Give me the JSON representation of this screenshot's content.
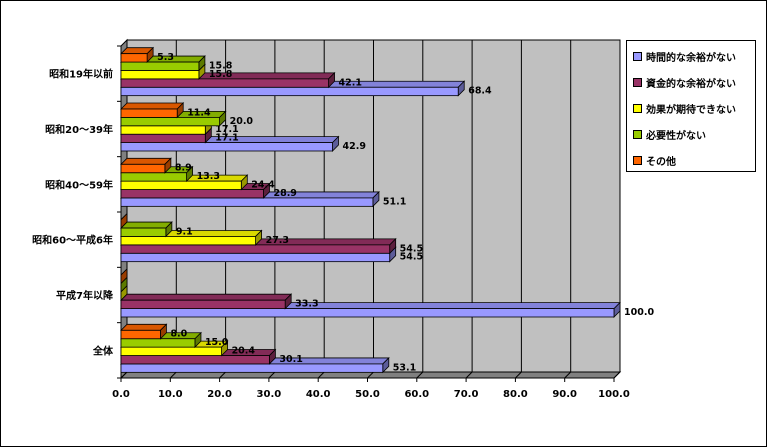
{
  "chart_data": {
    "type": "bar",
    "orientation": "horizontal",
    "categories": [
      "昭和19年以前",
      "昭和20～39年",
      "昭和40～59年",
      "昭和60～平成6年",
      "平成7年以降",
      "全体"
    ],
    "series": [
      {
        "name": "時間的な余裕がない",
        "color": "#9999ff",
        "values": [
          68.4,
          42.9,
          51.1,
          54.5,
          100.0,
          53.1
        ]
      },
      {
        "name": "資金的な余裕がない",
        "color": "#993366",
        "values": [
          42.1,
          17.1,
          28.9,
          54.5,
          33.3,
          30.1
        ]
      },
      {
        "name": "効果が期待できない",
        "color": "#ffff00",
        "values": [
          15.8,
          17.1,
          24.4,
          27.3,
          0.0,
          20.4
        ]
      },
      {
        "name": "必要性がない",
        "color": "#99cc00",
        "values": [
          15.8,
          20.0,
          13.3,
          9.1,
          0.0,
          15.0
        ]
      },
      {
        "name": "その他",
        "color": "#ff6600",
        "values": [
          5.3,
          11.4,
          8.9,
          0.0,
          0.0,
          8.0
        ]
      }
    ],
    "data_labels": [
      [
        "68.4",
        "42.1",
        "15.8",
        "15.8",
        "5.3"
      ],
      [
        "42.9",
        "17.1",
        "17.1",
        "20.0",
        "11.4"
      ],
      [
        "51.1",
        "28.9",
        "24.4",
        "13.3",
        "8.9"
      ],
      [
        "54.5",
        "54.5",
        "27.3",
        "9.1",
        ""
      ],
      [
        "100.0",
        "33.3",
        "",
        "",
        ""
      ],
      [
        "53.1",
        "30.1",
        "20.4",
        "15.0",
        "8.0"
      ]
    ],
    "x_ticks": [
      "0.0",
      "10.0",
      "20.0",
      "30.0",
      "40.0",
      "50.0",
      "60.0",
      "70.0",
      "80.0",
      "90.0",
      "100.0"
    ],
    "xlim": [
      0,
      100
    ],
    "grid": true,
    "legend_position": "right"
  }
}
